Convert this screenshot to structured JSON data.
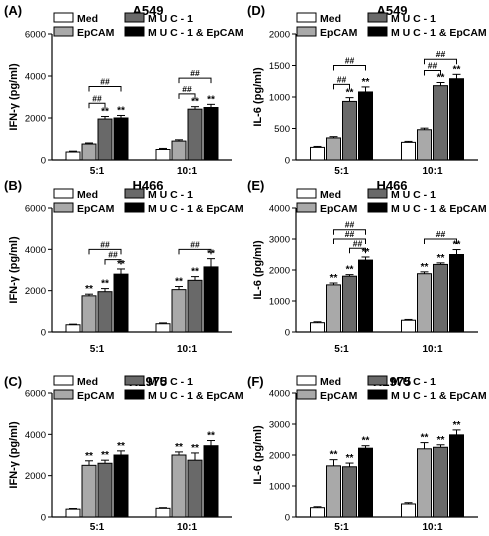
{
  "legend_entries": [
    "Med",
    "EpCAM",
    "M U C - 1",
    "M U C - 1 & EpCAM"
  ],
  "chart_data": [
    {
      "panel": "(A)",
      "type": "bar",
      "title": "A549",
      "ylabel": "IFN-γ (pg/ml)",
      "ylim": [
        0,
        6000
      ],
      "yticks": [
        0,
        2000,
        4000,
        6000
      ],
      "categories": [
        "5:1",
        "10:1"
      ],
      "series": [
        {
          "name": "Med",
          "color": "#ffffff",
          "values": [
            380,
            500
          ],
          "errors": [
            40,
            50
          ],
          "marks": [
            "",
            ""
          ]
        },
        {
          "name": "EpCAM",
          "color": "#a9a9a9",
          "values": [
            760,
            900
          ],
          "errors": [
            50,
            60
          ],
          "marks": [
            "",
            ""
          ]
        },
        {
          "name": "M U C - 1",
          "color": "#696969",
          "values": [
            1950,
            2420
          ],
          "errors": [
            120,
            120
          ],
          "marks": [
            "**",
            "**"
          ]
        },
        {
          "name": "M U C - 1 & EpCAM",
          "color": "#000000",
          "values": [
            2000,
            2500
          ],
          "errors": [
            120,
            150
          ],
          "marks": [
            "**",
            "**"
          ]
        }
      ],
      "comparisons": [
        {
          "group": 0,
          "from": 1,
          "to": 2,
          "label": "##",
          "y": 2700
        },
        {
          "group": 0,
          "from": 1,
          "to": 3,
          "label": "##",
          "y": 3500
        },
        {
          "group": 1,
          "from": 1,
          "to": 2,
          "label": "##",
          "y": 3150
        },
        {
          "group": 1,
          "from": 1,
          "to": 3,
          "label": "##",
          "y": 3900
        }
      ]
    },
    {
      "panel": "(D)",
      "type": "bar",
      "title": "A549",
      "ylabel": "IL-6 (pg/ml)",
      "ylim": [
        0,
        2000
      ],
      "yticks": [
        0,
        500,
        1000,
        1500,
        2000
      ],
      "categories": [
        "5:1",
        "10:1"
      ],
      "series": [
        {
          "name": "Med",
          "color": "#ffffff",
          "values": [
            200,
            280
          ],
          "errors": [
            15,
            15
          ],
          "marks": [
            "",
            ""
          ]
        },
        {
          "name": "EpCAM",
          "color": "#a9a9a9",
          "values": [
            350,
            480
          ],
          "errors": [
            20,
            25
          ],
          "marks": [
            "",
            ""
          ]
        },
        {
          "name": "M U C - 1",
          "color": "#696969",
          "values": [
            930,
            1180
          ],
          "errors": [
            60,
            50
          ],
          "marks": [
            "**",
            "**"
          ]
        },
        {
          "name": "M U C - 1 & EpCAM",
          "color": "#000000",
          "values": [
            1080,
            1290
          ],
          "errors": [
            80,
            70
          ],
          "marks": [
            "**",
            "**"
          ]
        }
      ],
      "comparisons": [
        {
          "group": 0,
          "from": 1,
          "to": 2,
          "label": "##",
          "y": 1200
        },
        {
          "group": 0,
          "from": 1,
          "to": 3,
          "label": "##",
          "y": 1500
        },
        {
          "group": 1,
          "from": 1,
          "to": 2,
          "label": "##",
          "y": 1420
        },
        {
          "group": 1,
          "from": 1,
          "to": 3,
          "label": "##",
          "y": 1600
        }
      ]
    },
    {
      "panel": "(B)",
      "type": "bar",
      "title": "H466",
      "ylabel": "IFN-γ (pg/ml)",
      "ylim": [
        0,
        6000
      ],
      "yticks": [
        0,
        2000,
        4000,
        6000
      ],
      "categories": [
        "5:1",
        "10:1"
      ],
      "series": [
        {
          "name": "Med",
          "color": "#ffffff",
          "values": [
            350,
            400
          ],
          "errors": [
            30,
            40
          ],
          "marks": [
            "",
            ""
          ]
        },
        {
          "name": "EpCAM",
          "color": "#a9a9a9",
          "values": [
            1750,
            2050
          ],
          "errors": [
            80,
            150
          ],
          "marks": [
            "**",
            "**"
          ]
        },
        {
          "name": "M U C - 1",
          "color": "#696969",
          "values": [
            1950,
            2500
          ],
          "errors": [
            150,
            180
          ],
          "marks": [
            "**",
            "**"
          ]
        },
        {
          "name": "M U C - 1 & EpCAM",
          "color": "#000000",
          "values": [
            2800,
            3150
          ],
          "errors": [
            250,
            400
          ],
          "marks": [
            "**",
            "**"
          ]
        }
      ],
      "comparisons": [
        {
          "group": 0,
          "from": 1,
          "to": 3,
          "label": "##",
          "y": 4000
        },
        {
          "group": 0,
          "from": 2,
          "to": 3,
          "label": "##",
          "y": 3500
        },
        {
          "group": 1,
          "from": 1,
          "to": 3,
          "label": "##",
          "y": 4000
        }
      ]
    },
    {
      "panel": "(E)",
      "type": "bar",
      "title": "H466",
      "ylabel": "IL-6 (pg/ml)",
      "ylim": [
        0,
        4000
      ],
      "yticks": [
        0,
        1000,
        2000,
        3000,
        4000
      ],
      "categories": [
        "5:1",
        "10:1"
      ],
      "series": [
        {
          "name": "Med",
          "color": "#ffffff",
          "values": [
            300,
            380
          ],
          "errors": [
            30,
            25
          ],
          "marks": [
            "",
            ""
          ]
        },
        {
          "name": "EpCAM",
          "color": "#a9a9a9",
          "values": [
            1520,
            1880
          ],
          "errors": [
            60,
            60
          ],
          "marks": [
            "**",
            "**"
          ]
        },
        {
          "name": "M U C - 1",
          "color": "#696969",
          "values": [
            1800,
            2180
          ],
          "errors": [
            50,
            50
          ],
          "marks": [
            "**",
            "**"
          ]
        },
        {
          "name": "M U C - 1 & EpCAM",
          "color": "#000000",
          "values": [
            2320,
            2500
          ],
          "errors": [
            100,
            160
          ],
          "marks": [
            "**",
            "**"
          ]
        }
      ],
      "comparisons": [
        {
          "group": 0,
          "from": 1,
          "to": 3,
          "label": "##",
          "y": 3300
        },
        {
          "group": 0,
          "from": 1,
          "to": 3,
          "label": "##",
          "y": 3000
        },
        {
          "group": 0,
          "from": 2,
          "to": 3,
          "label": "##",
          "y": 2700
        },
        {
          "group": 1,
          "from": 1,
          "to": 3,
          "label": "##",
          "y": 3000
        }
      ]
    },
    {
      "panel": "(C)",
      "type": "bar",
      "title": "H1975",
      "ylabel": "IFN-γ (pg/ml)",
      "ylim": [
        0,
        6000
      ],
      "yticks": [
        0,
        2000,
        4000,
        6000
      ],
      "categories": [
        "5:1",
        "10:1"
      ],
      "series": [
        {
          "name": "Med",
          "color": "#ffffff",
          "values": [
            380,
            420
          ],
          "errors": [
            30,
            30
          ],
          "marks": [
            "",
            ""
          ]
        },
        {
          "name": "EpCAM",
          "color": "#a9a9a9",
          "values": [
            2500,
            3000
          ],
          "errors": [
            220,
            150
          ],
          "marks": [
            "**",
            "**"
          ]
        },
        {
          "name": "M U C - 1",
          "color": "#696969",
          "values": [
            2600,
            2750
          ],
          "errors": [
            150,
            350
          ],
          "marks": [
            "**",
            "**"
          ]
        },
        {
          "name": "M U C - 1 & EpCAM",
          "color": "#000000",
          "values": [
            3000,
            3450
          ],
          "errors": [
            200,
            250
          ],
          "marks": [
            "**",
            "**"
          ]
        }
      ],
      "comparisons": []
    },
    {
      "panel": "(F)",
      "type": "bar",
      "title": "H1975",
      "ylabel": "IL-6 (pg/ml)",
      "ylim": [
        0,
        4000
      ],
      "yticks": [
        0,
        1000,
        2000,
        3000,
        4000
      ],
      "categories": [
        "5:1",
        "10:1"
      ],
      "series": [
        {
          "name": "Med",
          "color": "#ffffff",
          "values": [
            300,
            420
          ],
          "errors": [
            30,
            40
          ],
          "marks": [
            "",
            ""
          ]
        },
        {
          "name": "EpCAM",
          "color": "#a9a9a9",
          "values": [
            1650,
            2200
          ],
          "errors": [
            200,
            200
          ],
          "marks": [
            "**",
            "**"
          ]
        },
        {
          "name": "M U C - 1",
          "color": "#696969",
          "values": [
            1620,
            2250
          ],
          "errors": [
            120,
            80
          ],
          "marks": [
            "**",
            "**"
          ]
        },
        {
          "name": "M U C - 1 & EpCAM",
          "color": "#000000",
          "values": [
            2220,
            2650
          ],
          "errors": [
            80,
            160
          ],
          "marks": [
            "**",
            "**"
          ]
        }
      ],
      "comparisons": []
    }
  ]
}
